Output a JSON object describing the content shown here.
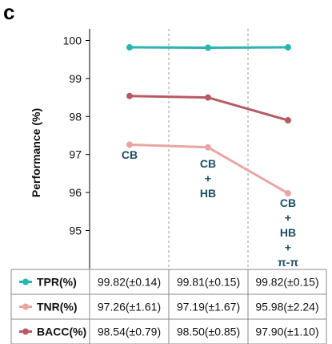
{
  "panel_letter": "c",
  "chart_data": {
    "type": "line",
    "categories": [
      "CB",
      "CB + HB",
      "CB + HB + π-π"
    ],
    "ylabel": "Performance (%)",
    "ylim": [
      94.5,
      100.4
    ],
    "yticks": [
      95,
      96,
      97,
      98,
      99,
      100
    ],
    "grid": "vertical",
    "series": [
      {
        "name": "TPR(%)",
        "color": "#2ab5b0",
        "values": [
          99.82,
          99.81,
          99.82
        ],
        "table": [
          "99.82(±0.14)",
          "99.81(±0.15)",
          "99.82(±0.15)"
        ]
      },
      {
        "name": "TNR(%)",
        "color": "#e8a6a3",
        "values": [
          97.26,
          97.19,
          95.98
        ],
        "table": [
          "97.26(±1.61)",
          "97.19(±1.67)",
          "95.98(±2.24)"
        ]
      },
      {
        "name": "BACC(%)",
        "color": "#b85a64",
        "values": [
          98.54,
          98.5,
          97.9
        ],
        "table": [
          "98.54(±0.79)",
          "98.50(±0.85)",
          "97.90(±1.10)"
        ]
      }
    ],
    "annotations": [
      [
        "CB"
      ],
      [
        "CB",
        "+",
        "HB"
      ],
      [
        "CB",
        "+",
        "HB",
        "+",
        "π-π"
      ]
    ]
  }
}
